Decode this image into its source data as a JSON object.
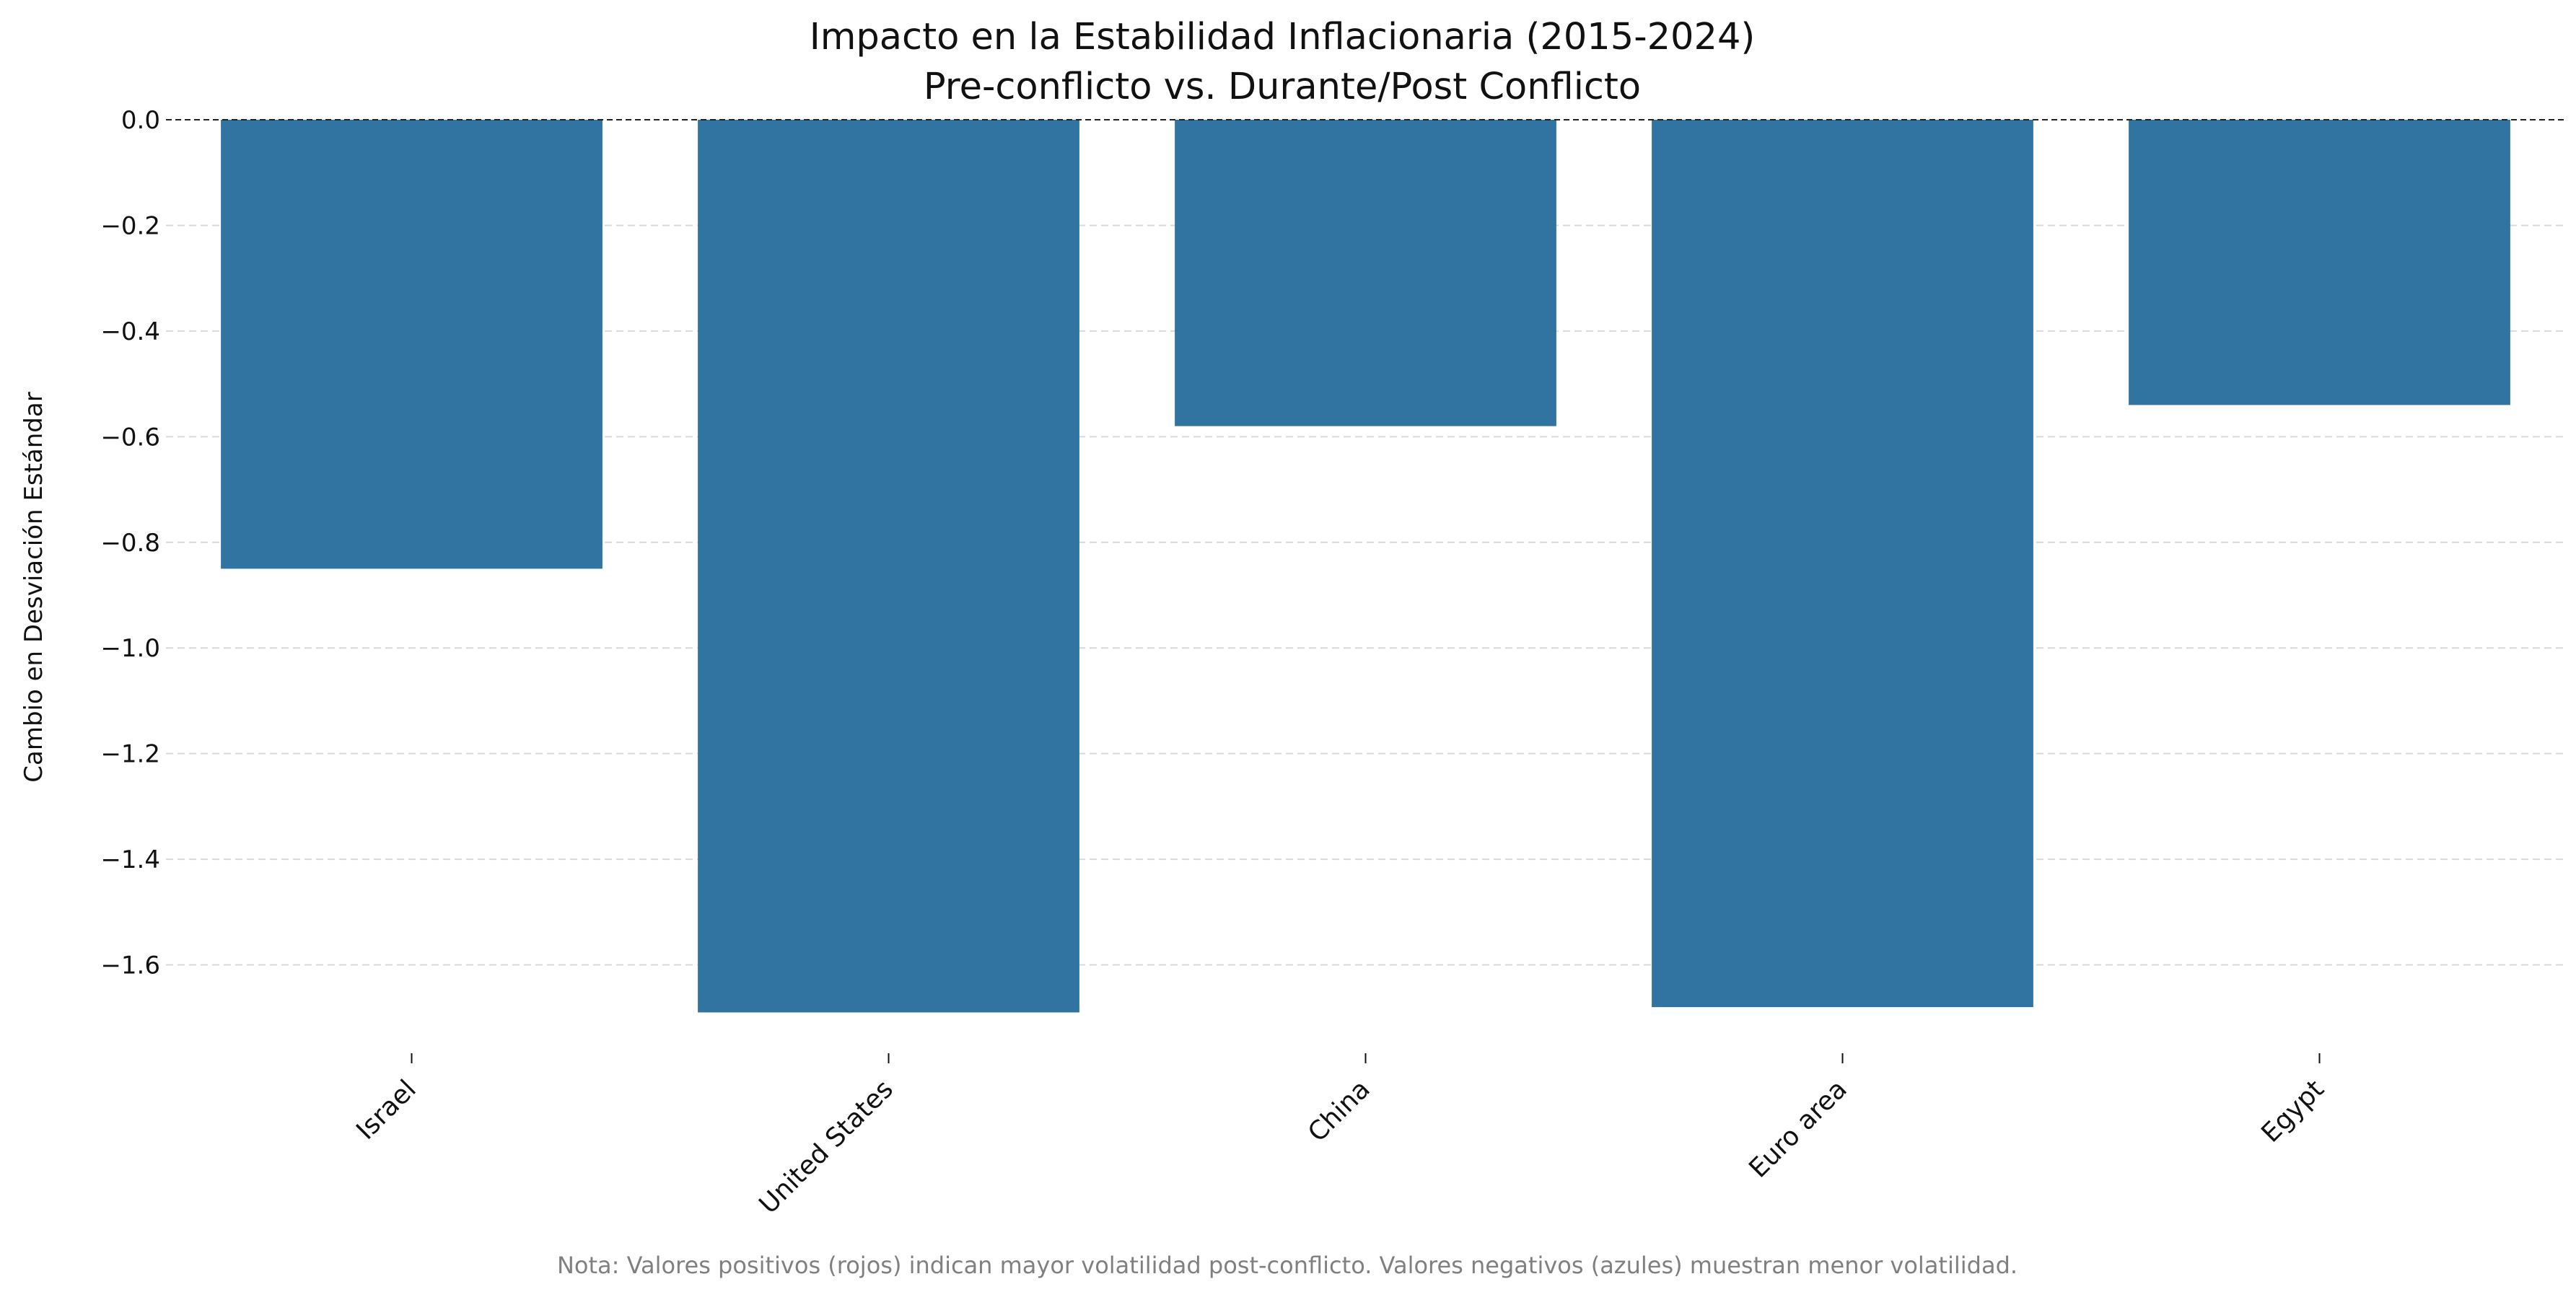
{
  "chart_data": {
    "type": "bar",
    "title_line1": "Impacto en la Estabilidad Inflacionaria (2015-2024)",
    "title_line2": "Pre-conflicto vs. Durante/Post Conflicto",
    "xlabel": "",
    "ylabel": "Cambio en Desviación Estándar",
    "categories": [
      "Israel",
      "United States",
      "China",
      "Euro area",
      "Egypt"
    ],
    "values": [
      -0.85,
      -1.69,
      -0.58,
      -1.68,
      -0.54
    ],
    "ylim": [
      -1.77,
      0.0
    ],
    "yticks": [
      0.0,
      -0.2,
      -0.4,
      -0.6,
      -0.8,
      -1.0,
      -1.2,
      -1.4,
      -1.6
    ],
    "ytick_labels": [
      "0.0",
      "−0.2",
      "−0.4",
      "−0.6",
      "−0.8",
      "−1.0",
      "−1.2",
      "−1.4",
      "−1.6"
    ],
    "grid": "horizontal dashed",
    "zero_line": "dashed",
    "bar_color": "#3274a1",
    "note": "Nota: Valores positivos (rojos) indican mayor volatilidad post-conflicto. Valores negativos (azules) muestran menor volatilidad."
  }
}
